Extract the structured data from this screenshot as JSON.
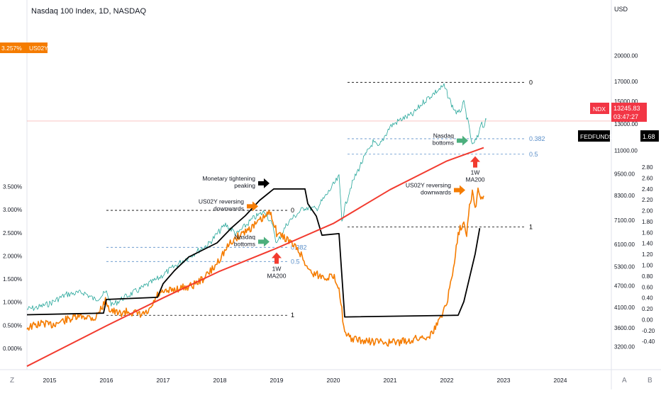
{
  "header": {
    "title": "Nasdaq 100 Index, 1D, NASDAQ",
    "right_unit": "USD"
  },
  "badges": {
    "us02y_value": "3.257%",
    "us02y_symbol": "US02Y",
    "ndx_symbol": "NDX",
    "ndx_price": "13245.83",
    "ndx_countdown": "03:47:27",
    "fedfunds_symbol": "FEDFUNDS",
    "fedfunds_value": "1.68"
  },
  "bottom_bar": {
    "left_button": "Z",
    "right_button_a": "A",
    "right_button_b": "B"
  },
  "colors": {
    "ndx_line": "#26a69a",
    "ndx_down": "#ef5350",
    "us02y": "#f57c00",
    "fedfunds": "#000000",
    "ma200": "#f23b2f",
    "fib": "#5b8fc9",
    "green_arrow": "#4caf7d",
    "red_arrow": "#f23b2f"
  },
  "chart_data": {
    "type": "line",
    "x_axis": {
      "labels": [
        "2015",
        "2016",
        "2017",
        "2018",
        "2019",
        "2020",
        "2021",
        "2022",
        "2023",
        "2024"
      ],
      "range": [
        2014.6,
        2024.9
      ]
    },
    "left_axis": {
      "labels": [
        "3.500%",
        "3.000%",
        "2.500%",
        "2.000%",
        "1.500%",
        "1.000%",
        "0.500%",
        "0.000%"
      ],
      "values": [
        3.5,
        3.0,
        2.5,
        2.0,
        1.5,
        1.0,
        0.5,
        0.0
      ]
    },
    "usd_axis": {
      "labels": [
        "20000.00",
        "17000.00",
        "15000.00",
        "13000.00",
        "11000.00",
        "9500.00",
        "8300.00",
        "7100.00",
        "6100.00",
        "5300.00",
        "4700.00",
        "4100.00",
        "3600.00",
        "3200.00"
      ],
      "values": [
        20000,
        17000,
        15000,
        13000,
        11000,
        9500,
        8300,
        7100,
        6100,
        5300,
        4700,
        4100,
        3600,
        3200
      ],
      "scale": "log"
    },
    "fed_axis": {
      "labels": [
        "2.80",
        "2.60",
        "2.40",
        "2.20",
        "2.00",
        "1.80",
        "1.60",
        "1.40",
        "1.20",
        "1.00",
        "0.80",
        "0.60",
        "0.40",
        "0.20",
        "0.00",
        "-0.20",
        "-0.40"
      ],
      "values": [
        2.8,
        2.6,
        2.4,
        2.2,
        2.0,
        1.8,
        1.6,
        1.4,
        1.2,
        1.0,
        0.8,
        0.6,
        0.4,
        0.2,
        0.0,
        -0.2,
        -0.4
      ]
    },
    "series": [
      {
        "name": "NDX",
        "axis": "usd",
        "points": [
          [
            2014.6,
            4050
          ],
          [
            2014.8,
            4100
          ],
          [
            2015.0,
            4200
          ],
          [
            2015.3,
            4450
          ],
          [
            2015.6,
            4500
          ],
          [
            2015.8,
            4300
          ],
          [
            2016.0,
            4500
          ],
          [
            2016.1,
            4150
          ],
          [
            2016.3,
            4350
          ],
          [
            2016.6,
            4600
          ],
          [
            2016.9,
            4900
          ],
          [
            2017.2,
            5300
          ],
          [
            2017.5,
            5700
          ],
          [
            2017.8,
            6100
          ],
          [
            2018.1,
            6900
          ],
          [
            2018.3,
            6500
          ],
          [
            2018.6,
            7200
          ],
          [
            2018.8,
            7500
          ],
          [
            2018.95,
            6700
          ],
          [
            2019.0,
            6100
          ],
          [
            2019.2,
            7000
          ],
          [
            2019.5,
            7700
          ],
          [
            2019.7,
            7600
          ],
          [
            2019.9,
            8400
          ],
          [
            2020.1,
            9300
          ],
          [
            2020.15,
            7100
          ],
          [
            2020.3,
            8700
          ],
          [
            2020.5,
            10200
          ],
          [
            2020.7,
            11600
          ],
          [
            2020.8,
            11200
          ],
          [
            2021.0,
            12800
          ],
          [
            2021.2,
            13400
          ],
          [
            2021.4,
            13800
          ],
          [
            2021.6,
            15000
          ],
          [
            2021.8,
            15900
          ],
          [
            2021.95,
            16500
          ],
          [
            2022.1,
            14500
          ],
          [
            2022.2,
            13800
          ],
          [
            2022.3,
            14800
          ],
          [
            2022.4,
            12500
          ],
          [
            2022.45,
            11300
          ],
          [
            2022.55,
            12000
          ],
          [
            2022.6,
            13200
          ],
          [
            2022.65,
            12800
          ],
          [
            2022.7,
            13400
          ]
        ]
      },
      {
        "name": "US02Y",
        "axis": "percent",
        "points": [
          [
            2014.6,
            0.45
          ],
          [
            2014.9,
            0.55
          ],
          [
            2015.0,
            0.5
          ],
          [
            2015.3,
            0.62
          ],
          [
            2015.6,
            0.7
          ],
          [
            2015.8,
            0.65
          ],
          [
            2016.0,
            1.05
          ],
          [
            2016.05,
            0.85
          ],
          [
            2016.2,
            0.75
          ],
          [
            2016.4,
            0.8
          ],
          [
            2016.6,
            0.72
          ],
          [
            2016.75,
            0.78
          ],
          [
            2016.9,
            1.15
          ],
          [
            2017.2,
            1.28
          ],
          [
            2017.5,
            1.35
          ],
          [
            2017.7,
            1.5
          ],
          [
            2017.9,
            1.75
          ],
          [
            2018.0,
            1.95
          ],
          [
            2018.2,
            2.3
          ],
          [
            2018.4,
            2.5
          ],
          [
            2018.6,
            2.65
          ],
          [
            2018.8,
            2.85
          ],
          [
            2018.9,
            2.95
          ],
          [
            2019.0,
            2.5
          ],
          [
            2019.2,
            2.35
          ],
          [
            2019.4,
            2.1
          ],
          [
            2019.5,
            1.85
          ],
          [
            2019.6,
            1.65
          ],
          [
            2019.8,
            1.55
          ],
          [
            2020.0,
            1.55
          ],
          [
            2020.1,
            1.35
          ],
          [
            2020.2,
            0.3
          ],
          [
            2020.3,
            0.22
          ],
          [
            2020.5,
            0.16
          ],
          [
            2020.8,
            0.14
          ],
          [
            2021.0,
            0.12
          ],
          [
            2021.3,
            0.16
          ],
          [
            2021.5,
            0.22
          ],
          [
            2021.7,
            0.28
          ],
          [
            2021.8,
            0.45
          ],
          [
            2021.9,
            0.7
          ],
          [
            2022.0,
            1.0
          ],
          [
            2022.1,
            1.6
          ],
          [
            2022.2,
            2.5
          ],
          [
            2022.3,
            2.75
          ],
          [
            2022.35,
            2.5
          ],
          [
            2022.4,
            3.1
          ],
          [
            2022.45,
            3.4
          ],
          [
            2022.5,
            3.0
          ],
          [
            2022.55,
            3.45
          ],
          [
            2022.6,
            3.2
          ],
          [
            2022.65,
            3.3
          ]
        ]
      },
      {
        "name": "FEDFUNDS",
        "axis": "fed",
        "points": [
          [
            2014.6,
            0.09
          ],
          [
            2015.95,
            0.12
          ],
          [
            2016.0,
            0.37
          ],
          [
            2016.9,
            0.41
          ],
          [
            2017.0,
            0.66
          ],
          [
            2017.2,
            0.9
          ],
          [
            2017.45,
            1.15
          ],
          [
            2017.95,
            1.41
          ],
          [
            2018.2,
            1.68
          ],
          [
            2018.45,
            1.91
          ],
          [
            2018.7,
            2.19
          ],
          [
            2018.95,
            2.4
          ],
          [
            2019.5,
            2.4
          ],
          [
            2019.55,
            2.13
          ],
          [
            2019.7,
            1.9
          ],
          [
            2019.8,
            1.55
          ],
          [
            2020.1,
            1.58
          ],
          [
            2020.2,
            0.05
          ],
          [
            2022.2,
            0.08
          ],
          [
            2022.3,
            0.33
          ],
          [
            2022.4,
            0.77
          ],
          [
            2022.5,
            1.21
          ],
          [
            2022.58,
            1.68
          ]
        ]
      },
      {
        "name": "1W MA200",
        "axis": "usd",
        "points": [
          [
            2014.6,
            2830
          ],
          [
            2016.0,
            3650
          ],
          [
            2017.0,
            4350
          ],
          [
            2018.0,
            5150
          ],
          [
            2019.0,
            5950
          ],
          [
            2020.0,
            6950
          ],
          [
            2021.0,
            8600
          ],
          [
            2022.0,
            10300
          ],
          [
            2022.65,
            11200
          ]
        ]
      }
    ],
    "levels": [
      {
        "name": "fib-2018-0",
        "label": "0",
        "value": 7550,
        "axis": "usd",
        "x": [
          2016.0,
          2019.2
        ]
      },
      {
        "name": "fib-2018-0382",
        "label": "0.382",
        "value": 5980,
        "axis": "usd",
        "x": [
          2016.0,
          2019.2
        ]
      },
      {
        "name": "fib-2018-05",
        "label": "0.5",
        "value": 5470,
        "axis": "usd",
        "x": [
          2016.0,
          2019.2
        ]
      },
      {
        "name": "fib-2018-1",
        "label": "1",
        "value": 3900,
        "axis": "usd",
        "x": [
          2016.0,
          2019.2
        ]
      },
      {
        "name": "fib-2022-0",
        "label": "0",
        "value": 16900,
        "axis": "usd",
        "x": [
          2020.25,
          2023.4
        ]
      },
      {
        "name": "fib-2022-0382",
        "label": "0.382",
        "value": 11850,
        "axis": "usd",
        "x": [
          2020.25,
          2023.4
        ]
      },
      {
        "name": "fib-2022-05",
        "label": "0.5",
        "value": 10750,
        "axis": "usd",
        "x": [
          2020.25,
          2023.4
        ]
      },
      {
        "name": "fib-2022-1",
        "label": "1",
        "value": 6800,
        "axis": "usd",
        "x": [
          2020.25,
          2023.4
        ]
      }
    ],
    "annotations": [
      {
        "name": "monetary-tightening-peaking",
        "text": [
          "Monetary tightening",
          "peaking"
        ],
        "arrow": "black",
        "x": 2018.95,
        "fed": 2.4
      },
      {
        "name": "us02y-reversing-2018",
        "text": [
          "US02Y reversing",
          "downwards"
        ],
        "arrow": "orange",
        "x": 2018.75,
        "pct": 2.95
      },
      {
        "name": "nasdaq-bottoms-2018",
        "text": [
          "Nasdaq",
          "bottoms"
        ],
        "arrow": "green",
        "x": 2018.95,
        "usd": 5980
      },
      {
        "name": "ma200-2018",
        "text": [
          "1W",
          "MA200"
        ],
        "arrow": "red",
        "x": 2019.0,
        "usd": 5950
      },
      {
        "name": "us02y-reversing-2022",
        "text": [
          "US02Y reversing",
          "downwards"
        ],
        "arrow": "orange",
        "x": 2022.4,
        "pct": 3.3
      },
      {
        "name": "nasdaq-bottoms-2022",
        "text": [
          "Nasdaq",
          "bottoms"
        ],
        "arrow": "green",
        "x": 2022.45,
        "usd": 11300
      },
      {
        "name": "ma200-2022",
        "text": [
          "1W",
          "MA200"
        ],
        "arrow": "red",
        "x": 2022.5,
        "usd": 10900
      }
    ],
    "current_price_line": {
      "value": 13245.83,
      "axis": "usd"
    },
    "grid": false
  }
}
